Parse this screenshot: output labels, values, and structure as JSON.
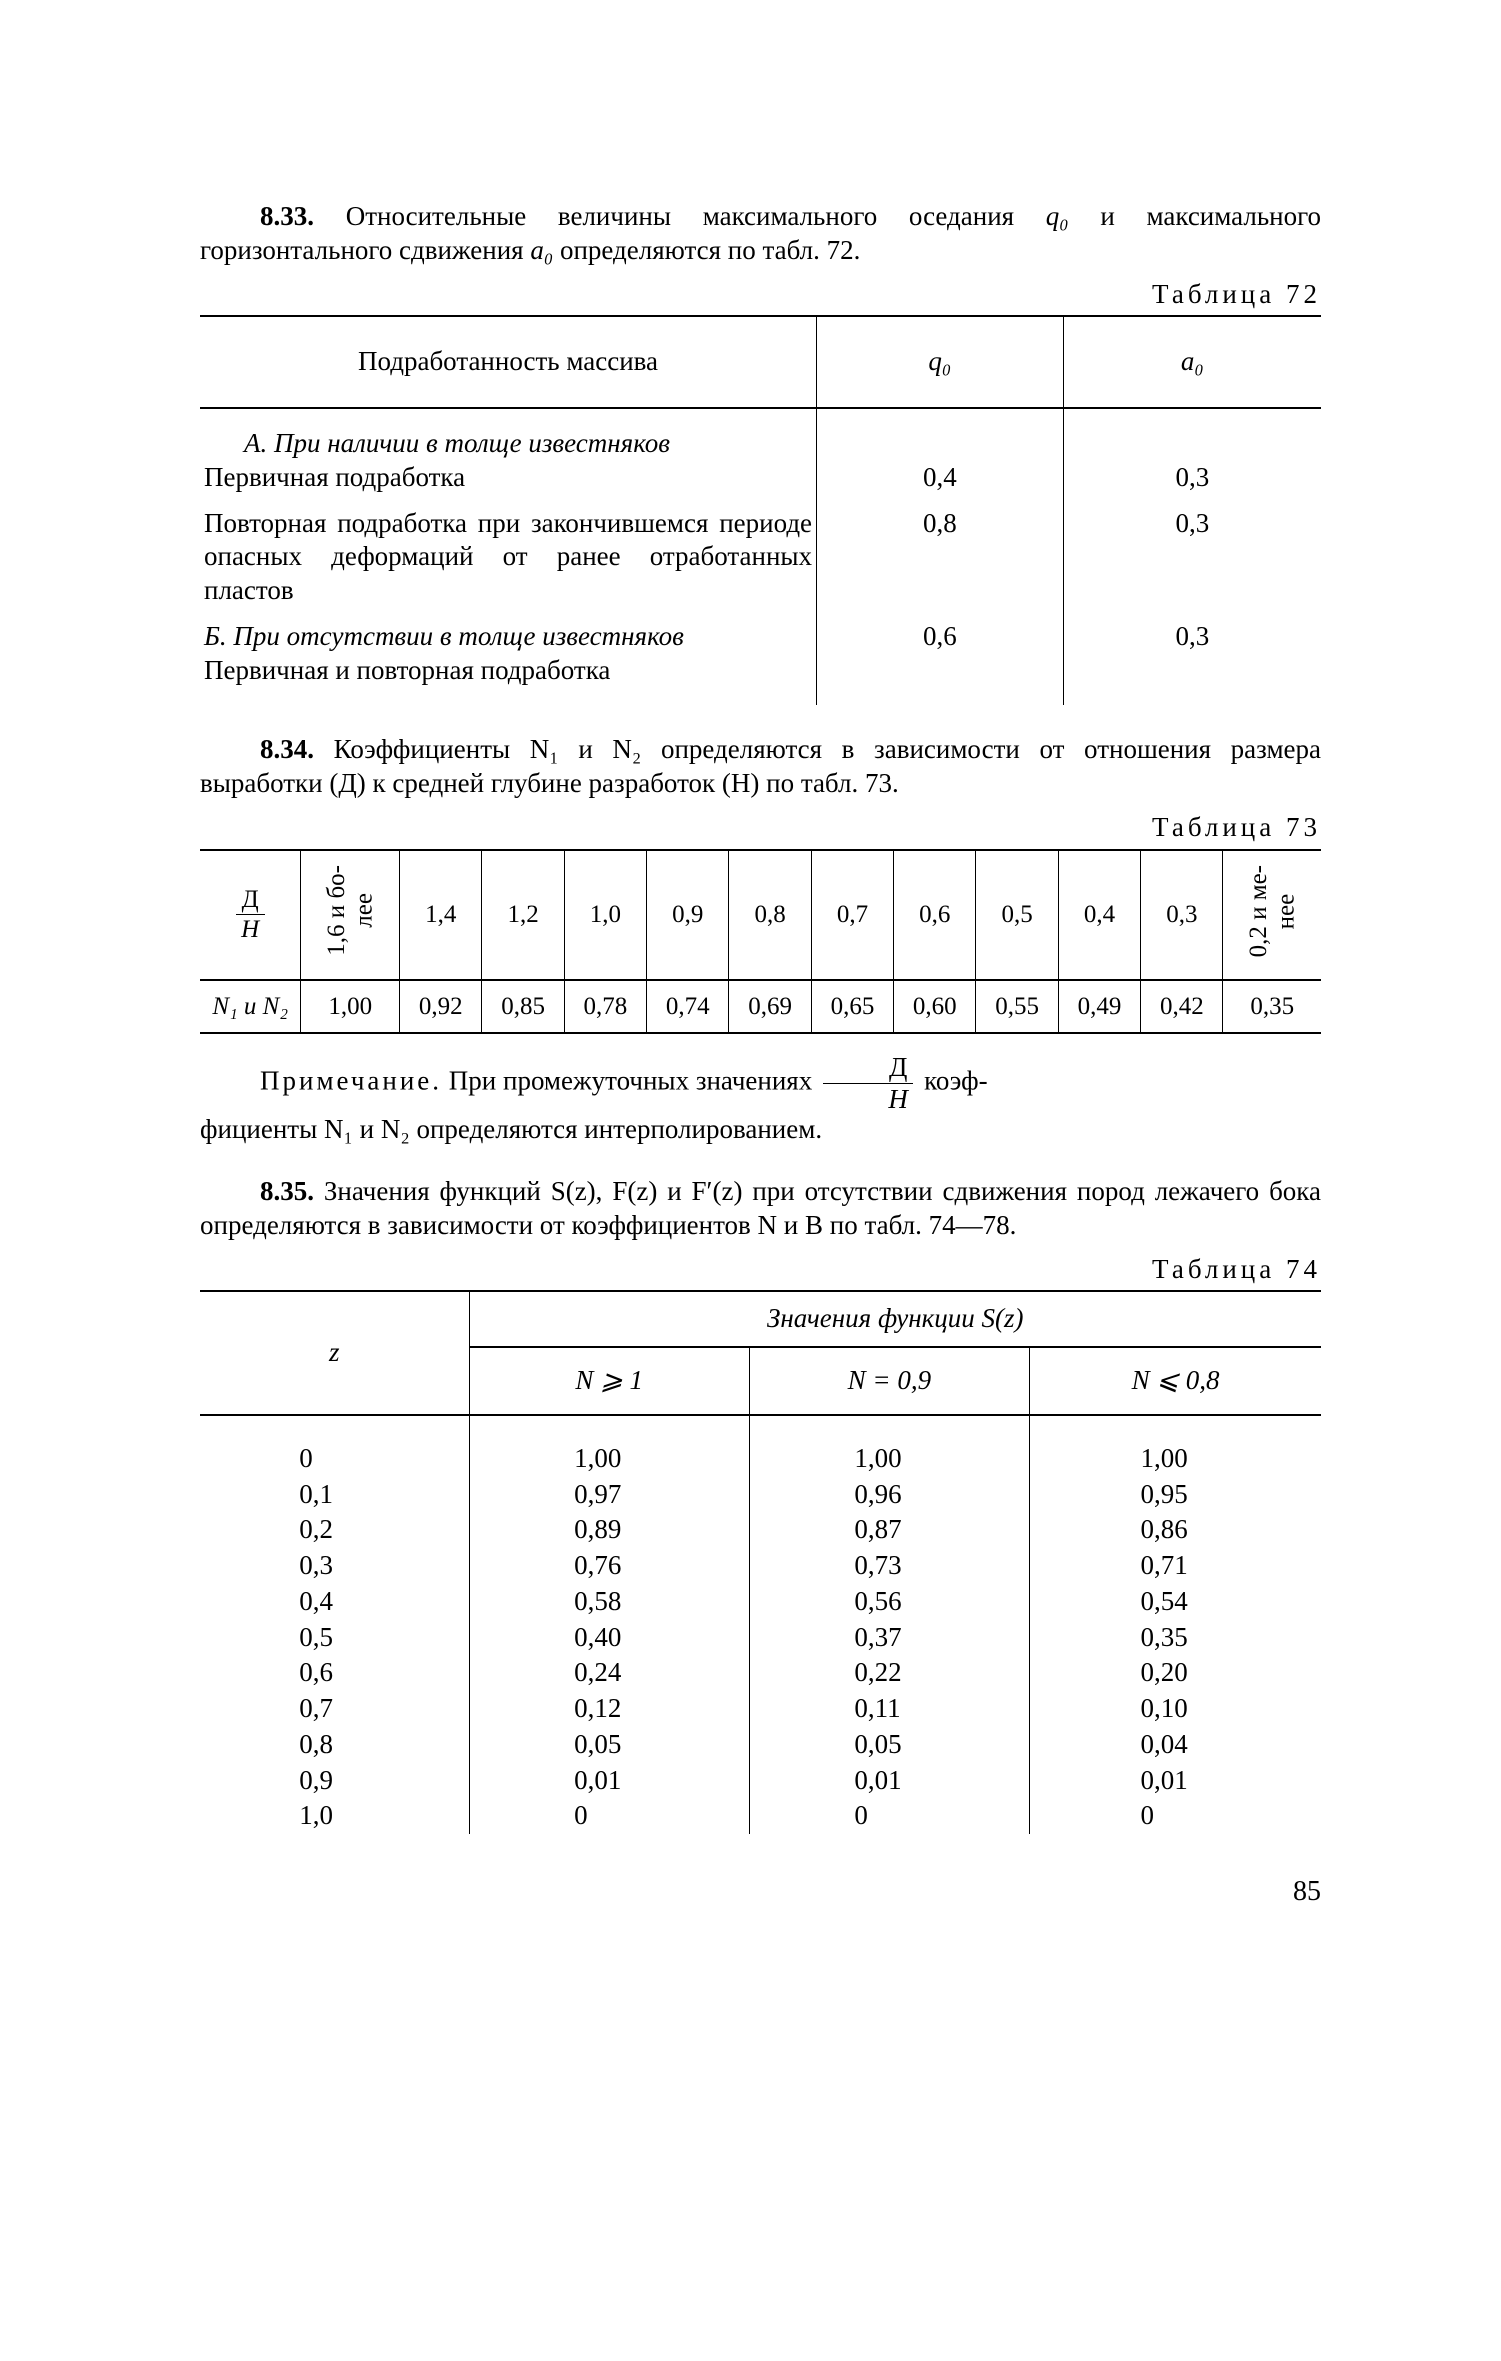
{
  "page_number": "85",
  "para_833": {
    "num": "8.33.",
    "text_before_q0": "Относительные величины максимального оседания ",
    "q0": "q₀",
    "text_mid": " и максимального горизонтального сдвижения ",
    "a0": "a₀",
    "text_after": " определяются по табл. 72."
  },
  "table72": {
    "caption": "Таблица 72",
    "head_col1": "Подработанность массива",
    "head_col2": "q₀",
    "head_col3": "a₀",
    "rowA_title": "А. При наличии в толще известняков",
    "rowA1_label": "Первичная подработка",
    "rowA1_q": "0,4",
    "rowA1_a": "0,3",
    "rowA2_label": "Повторная подработка при закончившемся периоде опасных деформаций от ранее отработанных пластов",
    "rowA2_q": "0,8",
    "rowA2_a": "0,3",
    "rowB_title": "Б. При отсутствии в толще известняков",
    "rowB1_label": "Первичная и повторная подработка",
    "rowB_q": "0,6",
    "rowB_a": "0,3"
  },
  "para_834": {
    "num": "8.34.",
    "text": "Коэффициенты N₁ и N₂ определяются в зависимости от отношения размера выработки (Д) к средней глубине разработок (H) по табл. 73."
  },
  "table73": {
    "caption": "Таблица 73",
    "row1_label_num": "Д",
    "row1_label_den": "H",
    "row2_label": "N₁ и N₂",
    "cols": [
      "1,6 и бо-\nлее",
      "1,4",
      "1,2",
      "1,0",
      "0,9",
      "0,8",
      "0,7",
      "0,6",
      "0,5",
      "0,4",
      "0,3",
      "0,2 и ме-\nнее"
    ],
    "vals": [
      "1,00",
      "0,92",
      "0,85",
      "0,78",
      "0,74",
      "0,69",
      "0,65",
      "0,60",
      "0,55",
      "0,49",
      "0,42",
      "0,35"
    ]
  },
  "note73": {
    "label": "Примечание.",
    "before": " При промежуточных значениях ",
    "frac_num": "Д",
    "frac_den": "H",
    "after1": " коэф-",
    "line2": "фициенты N₁ и N₂ определяются интерполированием."
  },
  "para_835": {
    "num": "8.35.",
    "text": "Значения функций S(z), F(z) и F′(z) при отсутствии сдвижения пород лежачего бока определяются в зависимости от коэффициентов N и B по табл. 74—78."
  },
  "table74": {
    "caption": "Таблица 74",
    "head_top": "Значения функции S(z)",
    "head_z": "z",
    "head_c1": "N ⩾ 1",
    "head_c2": "N = 0,9",
    "head_c3": "N ⩽ 0,8",
    "z": [
      "0",
      "0,1",
      "0,2",
      "0,3",
      "0,4",
      "0,5",
      "0,6",
      "0,7",
      "0,8",
      "0,9",
      "1,0"
    ],
    "c1": [
      "1,00",
      "0,97",
      "0,89",
      "0,76",
      "0,58",
      "0,40",
      "0,24",
      "0,12",
      "0,05",
      "0,01",
      "0"
    ],
    "c2": [
      "1,00",
      "0,96",
      "0,87",
      "0,73",
      "0,56",
      "0,37",
      "0,22",
      "0,11",
      "0,05",
      "0,01",
      "0"
    ],
    "c3": [
      "1,00",
      "0,95",
      "0,86",
      "0,71",
      "0,54",
      "0,35",
      "0,20",
      "0,10",
      "0,04",
      "0,01",
      "0"
    ]
  }
}
